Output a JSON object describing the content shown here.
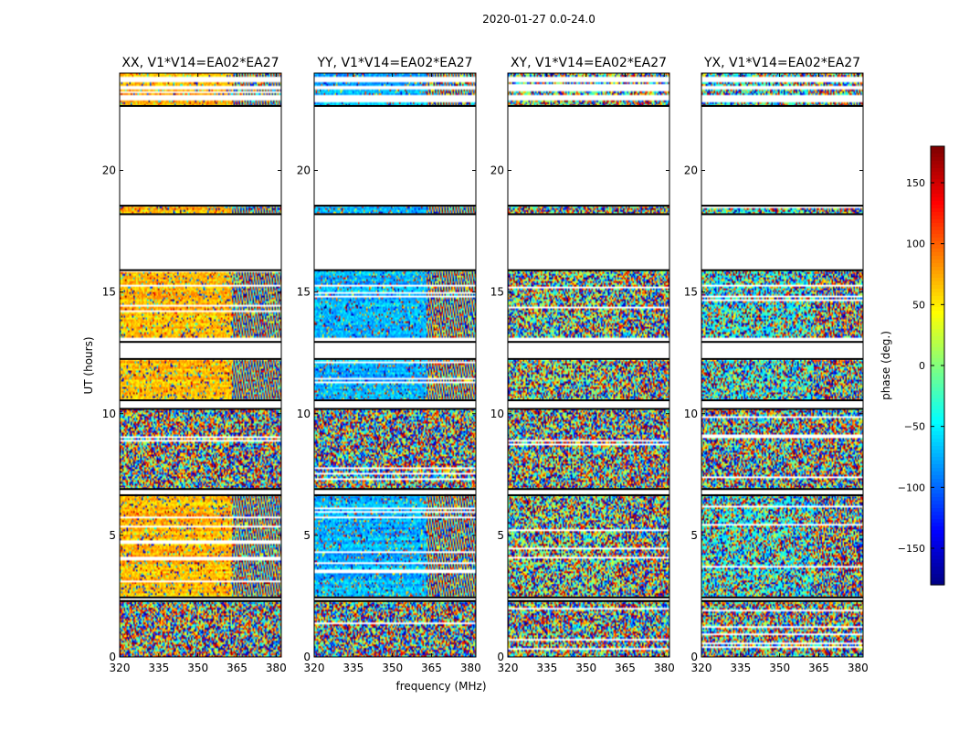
{
  "figure": {
    "suptitle": "2020-01-27 0.0-24.0"
  },
  "chart_data": {
    "type": "heatmap",
    "shared": {
      "xlabel": "frequency (MHz)",
      "ylabel": "UT (hours)",
      "xlim": [
        320,
        382
      ],
      "ylim": [
        0,
        24
      ],
      "xticks": [
        320,
        335,
        350,
        365,
        380
      ],
      "yticks": [
        0,
        5,
        10,
        15,
        20
      ],
      "data_blocks_hours": [
        [
          0.0,
          2.3
        ],
        [
          2.45,
          6.65
        ],
        [
          6.9,
          10.2
        ],
        [
          10.55,
          12.25
        ],
        [
          12.95,
          13.0
        ],
        [
          13.1,
          15.9
        ],
        [
          18.2,
          18.55
        ],
        [
          22.65,
          22.85
        ],
        [
          23.1,
          23.35
        ],
        [
          23.45,
          23.6
        ],
        [
          23.85,
          24.0
        ]
      ],
      "noise_bands_hours": [
        [
          0.0,
          2.3
        ],
        [
          6.9,
          10.2
        ]
      ],
      "gaps_hours": [
        [
          2.3,
          2.45
        ],
        [
          6.65,
          6.9
        ],
        [
          10.2,
          10.55
        ],
        [
          12.25,
          12.95
        ],
        [
          15.9,
          18.2
        ],
        [
          18.55,
          22.65
        ]
      ],
      "fringe_start_mhz": 363
    },
    "panels": [
      {
        "title": "XX, V1*V14=EA02*EA27",
        "mean_phase_deg": 70,
        "coherence": 0.8
      },
      {
        "title": "YY, V1*V14=EA02*EA27",
        "mean_phase_deg": -70,
        "coherence": 0.8
      },
      {
        "title": "XY, V1*V14=EA02*EA27",
        "mean_phase_deg": 0,
        "coherence": 0.15
      },
      {
        "title": "YX, V1*V14=EA02*EA27",
        "mean_phase_deg": -40,
        "coherence": 0.3
      }
    ],
    "colorbar": {
      "label": "phase (deg.)",
      "range": [
        -180,
        180
      ],
      "ticks": [
        150,
        100,
        50,
        0,
        -50,
        -100,
        -150
      ],
      "tick_labels": [
        "150",
        "100",
        "50",
        "0",
        "−50",
        "−100",
        "−150"
      ],
      "colormap": "jet"
    }
  }
}
